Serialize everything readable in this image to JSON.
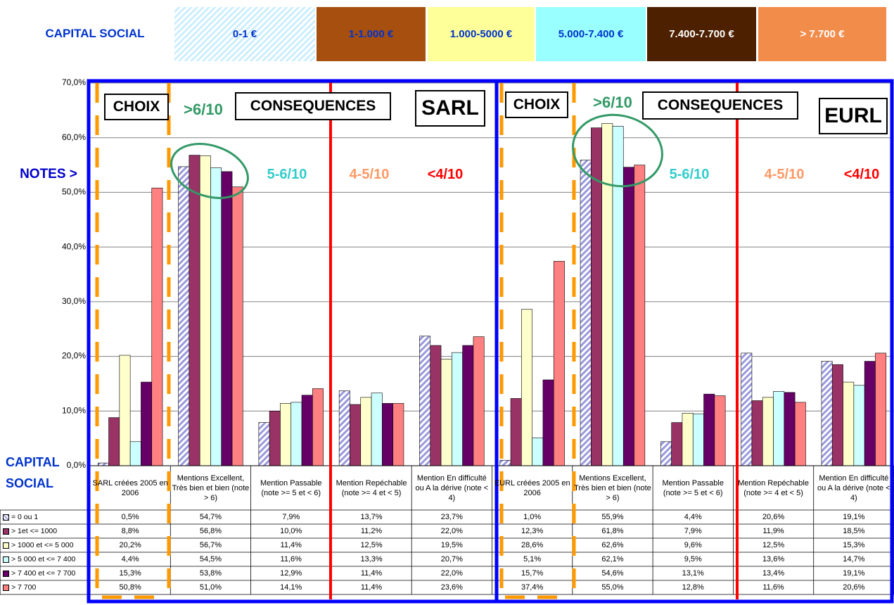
{
  "chart_data": {
    "type": "bar",
    "legend_title": "CAPITAL SOCIAL",
    "capital_classes": [
      {
        "label": "0-1 €",
        "color": "#cceeff",
        "hatch": true,
        "text_color": "#0033cc"
      },
      {
        "label": "1-1.000 €",
        "color": "#a64f0f",
        "text_color": "#0033cc"
      },
      {
        "label": "1.000-5000 €",
        "color": "#ffff99",
        "text_color": "#0033cc"
      },
      {
        "label": "5.000-7.400 €",
        "color": "#99ffff",
        "text_color": "#0033cc"
      },
      {
        "label": "7.400-7.700 €",
        "color": "#4d2000",
        "text_color": "#ffffff"
      },
      {
        "label": "> 7.700 €",
        "color": "#f28c4b",
        "text_color": "#ffffff"
      }
    ],
    "table_title": "CAPITAL SOCIAL",
    "categories": [
      "SARL créées 2005 en 2006",
      "Mentions Excellent, Très bien et bien (note > 6)",
      "Mention Passable (note >= 5 et < 6)",
      "Mention Repéchable (note >= 4 et < 5)",
      "Mention En difficulté ou A la dérive (note < 4)",
      "EURL créées 2005 en 2006",
      "Mentions Excellent, Très bien et bien (note > 6)",
      "Mention Passable (note >= 5 et < 6)",
      "Mention Repéchable (note >= 4 et < 5)",
      "Mention En difficulté ou A la dérive (note < 4)"
    ],
    "series": [
      {
        "name": "= 0 ou 1",
        "color": "#9999dd",
        "hatch": true,
        "values": [
          0.5,
          54.7,
          7.9,
          13.7,
          23.7,
          1.0,
          55.9,
          4.4,
          20.6,
          19.1
        ],
        "value_labels": [
          "0,5%",
          "54,7%",
          "7,9%",
          "13,7%",
          "23,7%",
          "1,0%",
          "55,9%",
          "4,4%",
          "20,6%",
          "19,1%"
        ]
      },
      {
        "name": "> 1et <= 1000",
        "color": "#993366",
        "values": [
          8.8,
          56.8,
          10.0,
          11.2,
          22.0,
          12.3,
          61.8,
          7.9,
          11.9,
          18.5
        ],
        "value_labels": [
          "8,8%",
          "56,8%",
          "10,0%",
          "11,2%",
          "22,0%",
          "12,3%",
          "61,8%",
          "7,9%",
          "11,9%",
          "18,5%"
        ]
      },
      {
        "name": "> 1000 et <= 5 000",
        "color": "#ffffcc",
        "values": [
          20.2,
          56.7,
          11.4,
          12.5,
          19.5,
          28.6,
          62.6,
          9.6,
          12.5,
          15.3
        ],
        "value_labels": [
          "20,2%",
          "56,7%",
          "11,4%",
          "12,5%",
          "19,5%",
          "28,6%",
          "62,6%",
          "9,6%",
          "12,5%",
          "15,3%"
        ]
      },
      {
        "name": "> 5 000 et <= 7 400",
        "color": "#ccffff",
        "values": [
          4.4,
          54.5,
          11.6,
          13.3,
          20.7,
          5.1,
          62.1,
          9.5,
          13.6,
          14.7
        ],
        "value_labels": [
          "4,4%",
          "54,5%",
          "11,6%",
          "13,3%",
          "20,7%",
          "5,1%",
          "62,1%",
          "9,5%",
          "13,6%",
          "14,7%"
        ]
      },
      {
        "name": "> 7 400 et <= 7 700",
        "color": "#660066",
        "values": [
          15.3,
          53.8,
          12.9,
          11.4,
          22.0,
          15.7,
          54.6,
          13.1,
          13.4,
          19.1
        ],
        "value_labels": [
          "15,3%",
          "53,8%",
          "12,9%",
          "11,4%",
          "22,0%",
          "15,7%",
          "54,6%",
          "13,1%",
          "13,4%",
          "19,1%"
        ]
      },
      {
        "name": "> 7 700",
        "color": "#ff8080",
        "values": [
          50.8,
          51.0,
          14.1,
          11.4,
          23.6,
          37.4,
          55.0,
          12.8,
          11.6,
          20.6
        ],
        "value_labels": [
          "50,8%",
          "51,0%",
          "14,1%",
          "11,4%",
          "23,6%",
          "37,4%",
          "55,0%",
          "12,8%",
          "11,6%",
          "20,6%"
        ]
      }
    ],
    "ylim": [
      0,
      70
    ],
    "yticks": [
      {
        "value": 0,
        "label": "0,0%"
      },
      {
        "value": 10,
        "label": "10,0%"
      },
      {
        "value": 20,
        "label": "20,0%"
      },
      {
        "value": 30,
        "label": "30,0%"
      },
      {
        "value": 40,
        "label": "40,0%"
      },
      {
        "value": 50,
        "label": "50,0%"
      },
      {
        "value": 60,
        "label": "60,0%"
      },
      {
        "value": 70,
        "label": "70,0%"
      }
    ],
    "grid": true,
    "annotations": [
      "CHOIX",
      ">6/10",
      "CONSEQUENCES",
      "SARL",
      "CHOIX",
      ">6/10",
      "CONSEQUENCES",
      "EURL",
      "NOTES >",
      "5-6/10",
      "4-5/10",
      "<4/10",
      "5-6/10",
      "4-5/10",
      "<4/10"
    ]
  }
}
